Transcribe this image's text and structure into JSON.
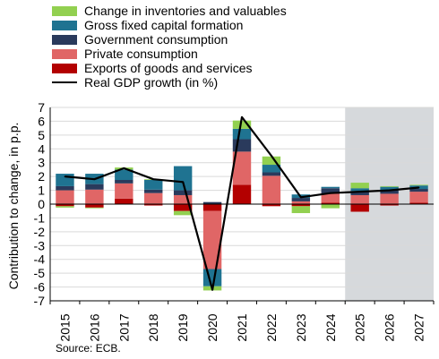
{
  "chart_data": {
    "type": "bar",
    "stacked": true,
    "title": "",
    "xlabel": "",
    "ylabel": "Contribution to change, in p.p.",
    "ylim": [
      -7,
      7
    ],
    "yticks": [
      7,
      6,
      5,
      4,
      3,
      2,
      1,
      0,
      -1,
      -2,
      -3,
      -4,
      -5,
      -6,
      -7
    ],
    "grid": "horizontal",
    "projection_shading_from": "2025",
    "categories": [
      "2015",
      "2016",
      "2017",
      "2018",
      "2019",
      "2020",
      "2021",
      "2022",
      "2023",
      "2024",
      "2025",
      "2026",
      "2027"
    ],
    "series": [
      {
        "name": "Change in inventories and valuables",
        "color": "#92d050",
        "values": [
          -0.1,
          -0.05,
          0.15,
          0.05,
          -0.3,
          -0.3,
          0.6,
          0.6,
          -0.5,
          -0.3,
          0.4,
          0.05,
          0.05
        ]
      },
      {
        "name": "Gross fixed capital formation",
        "color": "#1f7391",
        "values": [
          0.9,
          0.75,
          0.75,
          0.7,
          1.75,
          -1.25,
          0.75,
          0.55,
          0.25,
          0.1,
          0.2,
          0.25,
          0.25
        ]
      },
      {
        "name": "Government consumption",
        "color": "#2a3a5c",
        "values": [
          0.3,
          0.4,
          0.25,
          0.25,
          0.35,
          0.15,
          0.9,
          0.25,
          0.25,
          0.4,
          0.3,
          0.25,
          0.2
        ]
      },
      {
        "name": "Private consumption",
        "color": "#e06666",
        "values": [
          1.0,
          1.05,
          1.1,
          0.8,
          0.65,
          -4.2,
          2.4,
          2.05,
          0.2,
          0.65,
          0.65,
          0.75,
          0.8
        ]
      },
      {
        "name": "Exports of goods and services",
        "color": "#b30000",
        "values": [
          -0.15,
          -0.25,
          0.4,
          -0.1,
          -0.5,
          -0.5,
          1.4,
          -0.15,
          -0.15,
          0.1,
          -0.55,
          -0.1,
          0.1
        ]
      }
    ],
    "line": {
      "name": "Real GDP growth (in %)",
      "color": "#000000",
      "values": [
        2.0,
        1.8,
        2.6,
        1.8,
        1.6,
        -6.2,
        6.3,
        3.5,
        0.5,
        0.8,
        0.9,
        1.0,
        1.2
      ]
    }
  },
  "legend": {
    "items": [
      {
        "label": "Change in inventories and valuables",
        "color": "#92d050",
        "kind": "bar"
      },
      {
        "label": "Gross fixed capital formation",
        "color": "#1f7391",
        "kind": "bar"
      },
      {
        "label": "Government consumption",
        "color": "#2a3a5c",
        "kind": "bar"
      },
      {
        "label": "Private consumption",
        "color": "#e06666",
        "kind": "bar"
      },
      {
        "label": "Exports of goods and services",
        "color": "#b30000",
        "kind": "bar"
      },
      {
        "label": "Real GDP growth (in %)",
        "color": "#000000",
        "kind": "line"
      }
    ]
  },
  "source": "Source: ECB."
}
